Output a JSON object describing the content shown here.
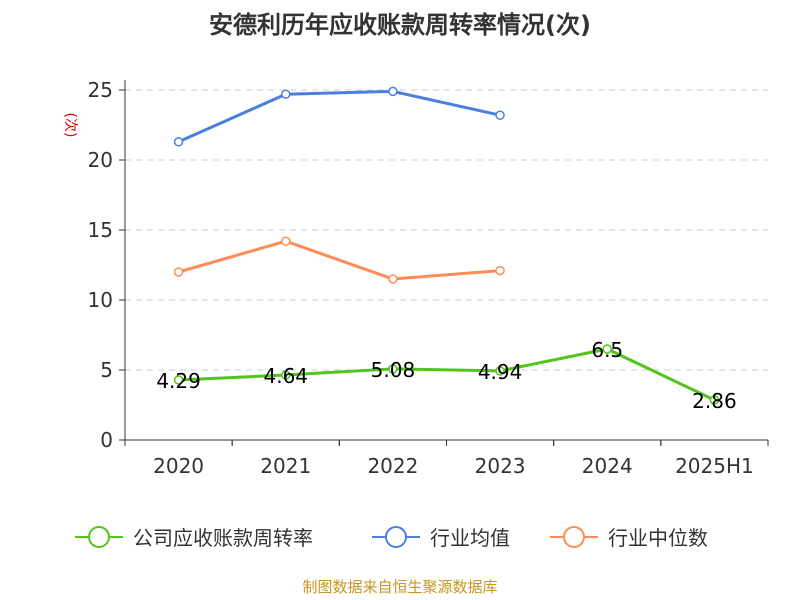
{
  "chart_data": {
    "type": "line",
    "title": "安德利历年应收账款周转率情况(次)",
    "ylabel": "(次)",
    "categories": [
      "2020",
      "2021",
      "2022",
      "2023",
      "2024",
      "2025H1"
    ],
    "ylim": [
      0,
      25
    ],
    "yticks": [
      "0",
      "5",
      "10",
      "15",
      "20",
      "25"
    ],
    "grid": true,
    "legend_position": "bottom",
    "series": [
      {
        "name": "公司应收账款周转率",
        "color": "#52c41a",
        "values": [
          4.29,
          4.64,
          5.08,
          4.94,
          6.5,
          2.86
        ],
        "labels": [
          "4.29",
          "4.64",
          "5.08",
          "4.94",
          "6.5",
          "2.86"
        ]
      },
      {
        "name": "行业均值",
        "color": "#4a7fdf",
        "values": [
          21.3,
          24.7,
          24.9,
          23.2,
          null,
          null
        ]
      },
      {
        "name": "行业中位数",
        "color": "#ff8c55",
        "values": [
          12.0,
          14.2,
          11.5,
          12.1,
          null,
          null
        ]
      }
    ]
  },
  "source": "制图数据来自恒生聚源数据库"
}
